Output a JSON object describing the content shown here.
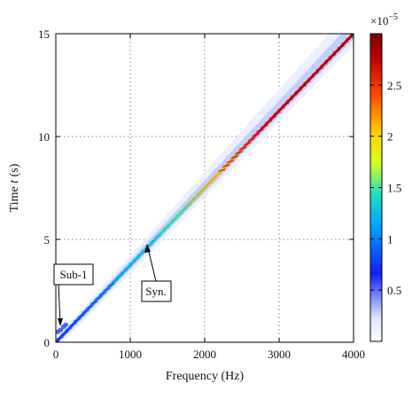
{
  "chart_data": {
    "type": "heatmap",
    "xlabel": "Frequency (Hz)",
    "ylabel_prefix": "Time ",
    "ylabel_var": "t",
    "ylabel_suffix": " (s)",
    "xlim": [
      0,
      4000
    ],
    "ylim": [
      0,
      15
    ],
    "x_ticks": [
      0,
      1000,
      2000,
      3000,
      4000
    ],
    "y_ticks": [
      0,
      5,
      10,
      15
    ],
    "grid": "dotted",
    "colorbar": {
      "range": [
        0,
        3e-05
      ],
      "ticks": [
        0.5,
        1,
        1.5,
        2,
        2.5
      ],
      "exponent_label": "×10",
      "exponent": "−5",
      "colormap": [
        "#ffffff",
        "#c9d3ff",
        "#0a1ef0",
        "#00e5ff",
        "#ffff00",
        "#ff6a00",
        "#b00000",
        "#7a0000"
      ]
    },
    "ridges": [
      {
        "name": "Syn.",
        "x": [
          0,
          4000
        ],
        "y": [
          0,
          15
        ],
        "peak_value": 2.9e-05
      },
      {
        "name": "Sub-1",
        "x": [
          0,
          120
        ],
        "y": [
          0.3,
          0.9
        ],
        "peak_value": 1e-05
      }
    ],
    "annotations": [
      {
        "text": "Sub-1",
        "target": {
          "x": 60,
          "y": 0.75
        }
      },
      {
        "text": "Syn.",
        "target": {
          "x": 1220,
          "y": 4.8
        }
      }
    ]
  }
}
